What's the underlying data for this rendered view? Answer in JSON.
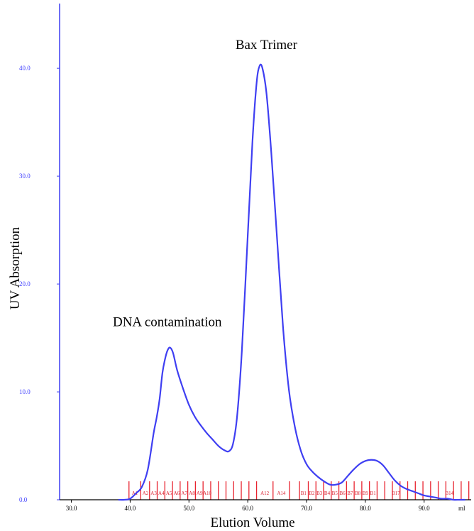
{
  "chart_data": {
    "type": "line",
    "title": "",
    "xlabel": "Elution Volume",
    "ylabel": "UV Absorption",
    "xlim": [
      28.0,
      98.0
    ],
    "ylim": [
      0,
      46.0
    ],
    "x_ticks": [
      30,
      40,
      50,
      60,
      70,
      80,
      90
    ],
    "x_tick_labels": [
      "30.0",
      "40.0",
      "50.0",
      "60.0",
      "70.0",
      "80.0",
      "90.0"
    ],
    "x_unit_label": "ml",
    "y_ticks": [
      0,
      10,
      20,
      30,
      40
    ],
    "y_tick_labels": [
      "0.0",
      "10.0",
      "20.0",
      "30.0",
      "40.0"
    ],
    "grid": false,
    "legend": "none",
    "line_color": "#3f3ff2",
    "fraction_color": "#e8232f",
    "series": [
      {
        "x": [
          38.0,
          39.0,
          40.0,
          41.0,
          42.0,
          43.0,
          44.0,
          44.5,
          45.0,
          45.5,
          46.0,
          46.4,
          46.8,
          47.3,
          48.0,
          49.0,
          50.0,
          51.0,
          52.0,
          53.0,
          54.0,
          55.0,
          56.0,
          56.8,
          57.5,
          58.2,
          59.0,
          60.0,
          60.8,
          61.5,
          62.0,
          62.5,
          63.2,
          64.0,
          65.0,
          66.0,
          67.0,
          68.0,
          69.0,
          70.0,
          71.0,
          72.0,
          73.0,
          74.0,
          75.0,
          76.0,
          77.0,
          78.0,
          79.0,
          80.0,
          81.0,
          82.0,
          83.0,
          84.0,
          85.0,
          86.0,
          87.0,
          88.0,
          89.0,
          90.0,
          91.0,
          92.0,
          93.0,
          94.0,
          95.0,
          96.0,
          97.0
        ],
        "y": [
          0.0,
          0.0,
          0.1,
          0.6,
          1.2,
          2.8,
          6.2,
          7.6,
          9.3,
          11.8,
          13.2,
          13.9,
          14.1,
          13.6,
          12.0,
          10.3,
          8.8,
          7.7,
          6.9,
          6.2,
          5.6,
          5.0,
          4.6,
          4.5,
          5.2,
          7.8,
          13.8,
          24.5,
          33.2,
          38.6,
          40.2,
          40.0,
          37.6,
          32.2,
          24.1,
          16.0,
          10.2,
          6.8,
          4.6,
          3.3,
          2.6,
          2.1,
          1.7,
          1.4,
          1.4,
          1.6,
          2.2,
          2.8,
          3.3,
          3.6,
          3.7,
          3.6,
          3.2,
          2.5,
          1.8,
          1.3,
          1.0,
          0.8,
          0.6,
          0.4,
          0.3,
          0.2,
          0.1,
          0.1,
          0.0,
          0.0,
          0.0
        ]
      }
    ],
    "annotations": [
      {
        "text": "Bax Trimer",
        "x": 62.2,
        "y": 40.2
      },
      {
        "text": "DNA contamination",
        "x": 46.8,
        "y": 14.1
      }
    ],
    "fractions": {
      "boundaries": [
        39.8,
        41.8,
        43.3,
        44.6,
        45.9,
        47.2,
        48.5,
        49.8,
        51.1,
        52.4,
        53.7,
        55.0,
        56.3,
        57.6,
        58.9,
        60.2,
        61.5,
        64.3,
        67.1,
        68.8,
        70.3,
        71.6,
        72.9,
        74.2,
        75.5,
        76.8,
        78.1,
        79.4,
        80.7,
        82.0,
        83.3,
        84.6,
        85.9,
        87.2,
        88.5,
        89.8,
        91.1,
        92.4,
        93.7,
        95.0,
        96.3,
        97.6
      ],
      "labels": [
        {
          "text": "A1",
          "x": 40.8
        },
        {
          "text": "A2",
          "x": 42.6
        },
        {
          "text": "A3",
          "x": 44.0
        },
        {
          "text": "A4",
          "x": 45.3
        },
        {
          "text": "A5",
          "x": 46.6
        },
        {
          "text": "A6",
          "x": 47.9
        },
        {
          "text": "A7",
          "x": 49.2
        },
        {
          "text": "A8",
          "x": 50.5
        },
        {
          "text": "A9",
          "x": 51.8
        },
        {
          "text": "A10",
          "x": 53.1
        },
        {
          "text": "A12",
          "x": 62.9
        },
        {
          "text": "A14",
          "x": 65.7
        },
        {
          "text": "B1",
          "x": 69.5
        },
        {
          "text": "B2",
          "x": 70.9
        },
        {
          "text": "B3",
          "x": 72.2
        },
        {
          "text": "B4",
          "x": 73.5
        },
        {
          "text": "B5",
          "x": 74.8
        },
        {
          "text": "B6",
          "x": 76.1
        },
        {
          "text": "B7",
          "x": 77.4
        },
        {
          "text": "B8",
          "x": 78.7
        },
        {
          "text": "B9",
          "x": 80.0
        },
        {
          "text": "B1",
          "x": 81.3
        },
        {
          "text": "B17",
          "x": 85.2
        },
        {
          "text": "B14",
          "x": 94.3
        }
      ]
    }
  }
}
